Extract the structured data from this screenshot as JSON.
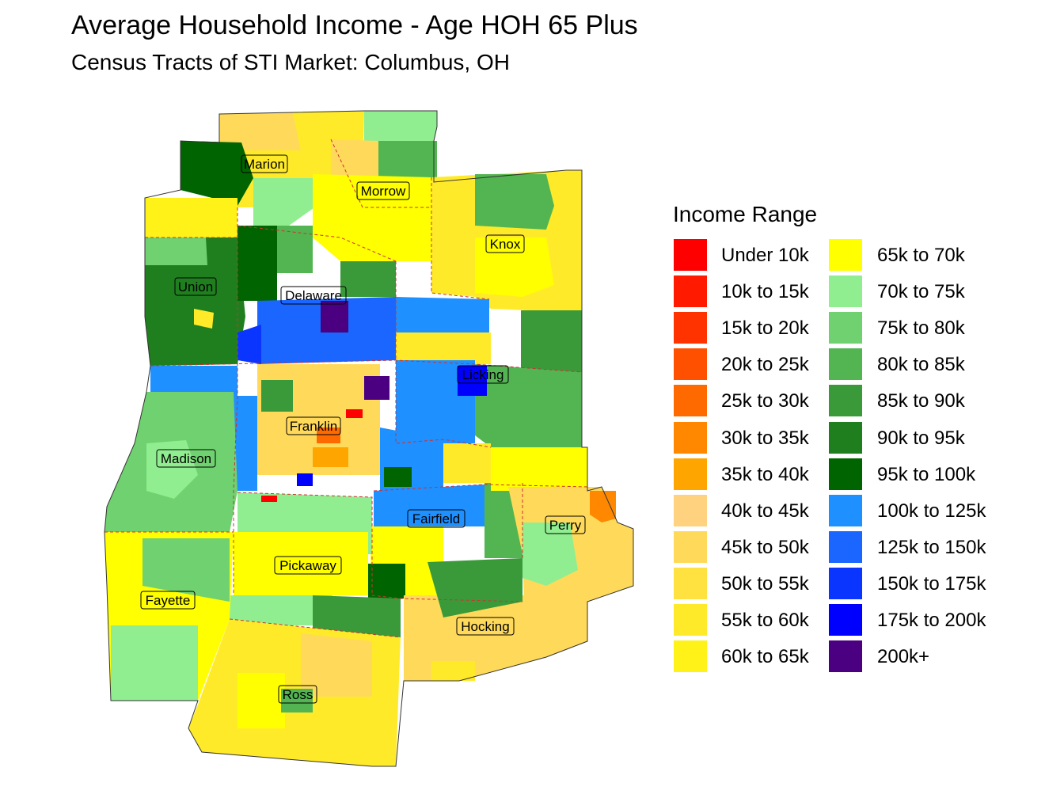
{
  "title": "Average Household Income - Age HOH 65 Plus",
  "subtitle": "Census Tracts of STI Market: Columbus, OH",
  "legend": {
    "title": "Income Range",
    "items": [
      {
        "label": "Under 10k",
        "color": "#FF0000"
      },
      {
        "label": "10k to 15k",
        "color": "#FF1A00"
      },
      {
        "label": "15k to 20k",
        "color": "#FF3300"
      },
      {
        "label": "20k to 25k",
        "color": "#FF5000"
      },
      {
        "label": "25k to 30k",
        "color": "#FF6A00"
      },
      {
        "label": "30k to 35k",
        "color": "#FF8800"
      },
      {
        "label": "35k to 40k",
        "color": "#FFA500"
      },
      {
        "label": "40k to 45k",
        "color": "#FFD27F"
      },
      {
        "label": "45k to 50k",
        "color": "#FFDA5A"
      },
      {
        "label": "50k to 55k",
        "color": "#FFE23F"
      },
      {
        "label": "55k to 60k",
        "color": "#FFEA2A"
      },
      {
        "label": "60k to 65k",
        "color": "#FFF218"
      },
      {
        "label": "65k to 70k",
        "color": "#FFFF00"
      },
      {
        "label": "70k to 75k",
        "color": "#90EE90"
      },
      {
        "label": "75k to 80k",
        "color": "#6FD16F"
      },
      {
        "label": "80k to 85k",
        "color": "#52B552"
      },
      {
        "label": "85k to 90k",
        "color": "#3A9A3A"
      },
      {
        "label": "90k to 95k",
        "color": "#1F7F1F"
      },
      {
        "label": "95k to 100k",
        "color": "#006400"
      },
      {
        "label": "100k to 125k",
        "color": "#1E90FF"
      },
      {
        "label": "125k to 150k",
        "color": "#1A66FF"
      },
      {
        "label": "150k to 175k",
        "color": "#0A35FF"
      },
      {
        "label": "175k to 200k",
        "color": "#0000FF"
      },
      {
        "label": "200k+",
        "color": "#4B0082"
      }
    ]
  },
  "counties": [
    {
      "name": "Marion"
    },
    {
      "name": "Morrow"
    },
    {
      "name": "Knox"
    },
    {
      "name": "Union"
    },
    {
      "name": "Delaware"
    },
    {
      "name": "Licking"
    },
    {
      "name": "Franklin"
    },
    {
      "name": "Madison"
    },
    {
      "name": "Fairfield"
    },
    {
      "name": "Perry"
    },
    {
      "name": "Pickaway"
    },
    {
      "name": "Fayette"
    },
    {
      "name": "Hocking"
    },
    {
      "name": "Ross"
    }
  ]
}
